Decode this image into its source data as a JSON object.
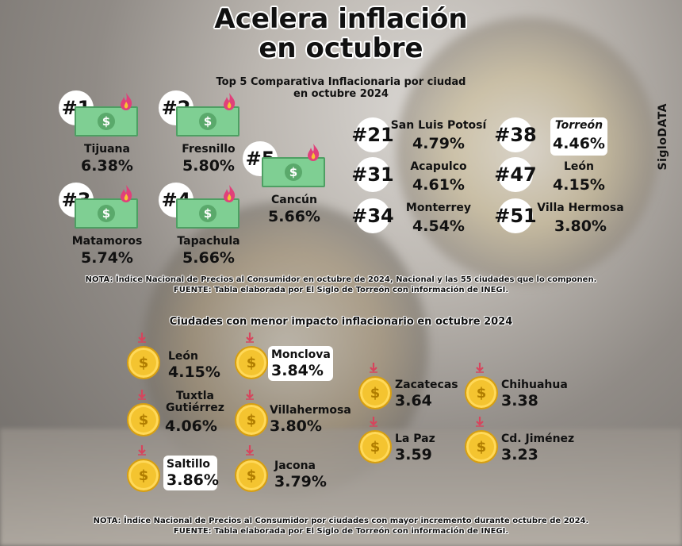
{
  "title": [
    "Acelera inflación",
    "en octubre"
  ],
  "brand": "SigloDATA",
  "top5": {
    "subtitle": [
      "Top 5 Comparativa Inflacionaria por ciudad",
      "en octubre 2024"
    ],
    "items": [
      {
        "rank": "#1",
        "city": "Tijuana",
        "value": "6.38%"
      },
      {
        "rank": "#2",
        "city": "Fresnillo",
        "value": "5.80%"
      },
      {
        "rank": "#3",
        "city": "Matamoros",
        "value": "5.74%"
      },
      {
        "rank": "#4",
        "city": "Tapachula",
        "value": "5.66%"
      },
      {
        "rank": "#5",
        "city": "Cancún",
        "value": "5.66%"
      }
    ],
    "others": [
      {
        "rank": "#21",
        "city": "San Luis Potosí",
        "value": "4.79%"
      },
      {
        "rank": "#31",
        "city": "Acapulco",
        "value": "4.61%"
      },
      {
        "rank": "#34",
        "city": "Monterrey",
        "value": "4.54%"
      },
      {
        "rank": "#38",
        "city": "Torreón",
        "value": "4.46%"
      },
      {
        "rank": "#47",
        "city": "León",
        "value": "4.15%"
      },
      {
        "rank": "#51",
        "city": "Villa Hermosa",
        "value": "3.80%"
      }
    ],
    "note": "NOTA: Índice Nacional de Precios al Consumidor en octubre de 2024, Nacional y las 55 ciudades que lo componen.",
    "source": "FUENTE: Tabla elaborada por El Siglo de Torreón con información de INEGI."
  },
  "lowest": {
    "subtitle": "Ciudades con menor impacto inflacionario en octubre 2024",
    "items": [
      {
        "city": "León",
        "value": "4.15%"
      },
      {
        "city": "Monclova",
        "value": "3.84%"
      },
      {
        "city": "Tuxtla Gutiérrez",
        "value": "4.06%"
      },
      {
        "city": "Villahermosa",
        "value": "3.80%"
      },
      {
        "city": "Saltillo",
        "value": "3.86%"
      },
      {
        "city": "Jacona",
        "value": "3.79%"
      },
      {
        "city": "Zacatecas",
        "value": "3.64"
      },
      {
        "city": "Chihuahua",
        "value": "3.38"
      },
      {
        "city": "La Paz",
        "value": "3.59"
      },
      {
        "city": "Cd. Jiménez",
        "value": "3.23"
      }
    ],
    "note": "NOTA: Índice Nacional de Precios al Consumidor por ciudades con mayor incremento durante octubre de 2024.",
    "source": "FUENTE: Tabla elaborada por El Siglo de Torreón con información de INEGI."
  },
  "colors": {
    "bill": "#7fcf93",
    "flame": "#e0407a",
    "coin": "#f4c430",
    "arrow": "#d6455d"
  },
  "icons": {
    "bill": "money-bill-icon",
    "flame": "fire-icon",
    "coin": "dollar-coin-icon",
    "arrow": "down-arrow-icon"
  }
}
